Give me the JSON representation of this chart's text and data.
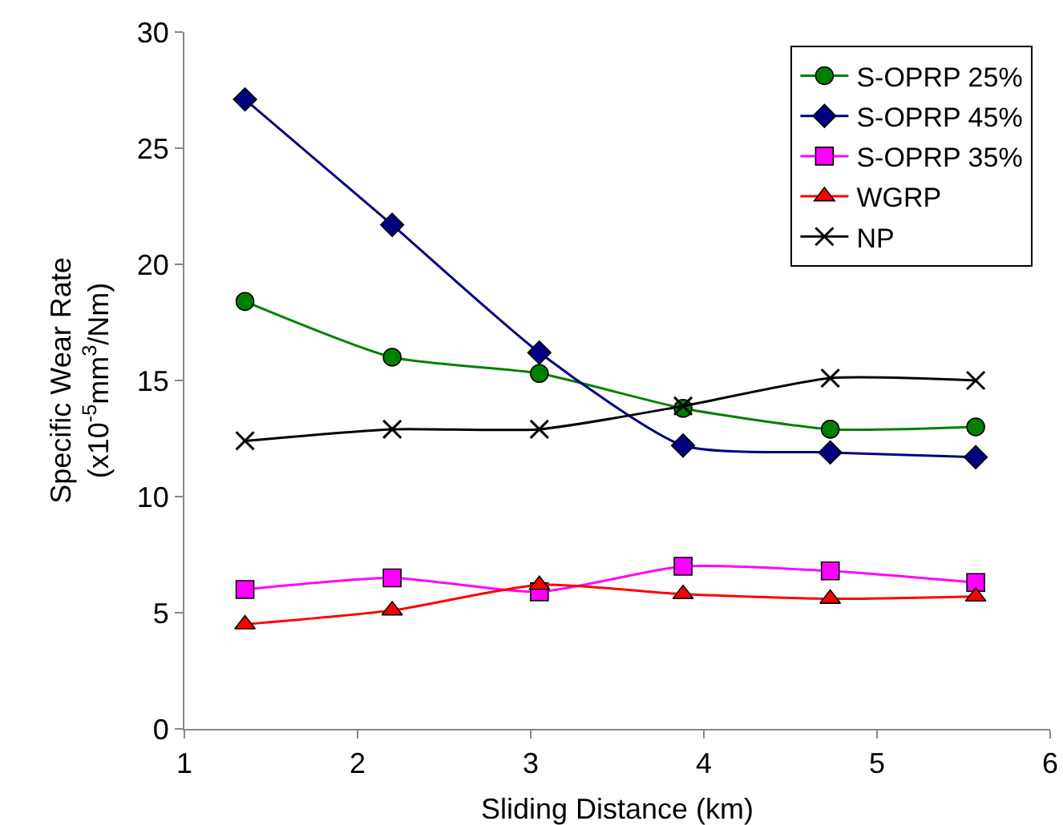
{
  "chart_data": {
    "type": "line",
    "xlabel": "Sliding Distance (km)",
    "ylabel": "Specific Wear Rate\n(x10$^{-5}$mm$^{3}$/Nm)",
    "x": [
      1.35,
      2.2,
      3.05,
      3.88,
      4.73,
      5.57
    ],
    "series": [
      {
        "name": "S-OPRP 25%",
        "color": "#008000",
        "marker": "circle",
        "values": [
          18.4,
          16.0,
          15.3,
          13.8,
          12.9,
          13.0
        ]
      },
      {
        "name": "S-OPRP 45%",
        "color": "#000080",
        "marker": "diamond",
        "values": [
          27.1,
          21.7,
          16.2,
          12.2,
          11.9,
          11.7
        ]
      },
      {
        "name": "S-OPRP 35%",
        "color": "#ff00ff",
        "marker": "square",
        "values": [
          6.0,
          6.5,
          5.9,
          7.0,
          6.8,
          6.3
        ]
      },
      {
        "name": "WGRP",
        "color": "#ff0000",
        "marker": "triangle",
        "values": [
          4.5,
          5.1,
          6.2,
          5.8,
          5.6,
          5.7
        ]
      },
      {
        "name": "NP",
        "color": "#000000",
        "marker": "cross",
        "values": [
          12.4,
          12.9,
          12.9,
          13.9,
          15.1,
          15.0
        ]
      }
    ],
    "xlim": [
      1,
      6
    ],
    "xticks": [
      1,
      2,
      3,
      4,
      5,
      6
    ],
    "ylim": [
      0,
      30
    ],
    "yticks": [
      0,
      5,
      10,
      15,
      20,
      25,
      30
    ],
    "grid": false,
    "legend": "top right"
  }
}
